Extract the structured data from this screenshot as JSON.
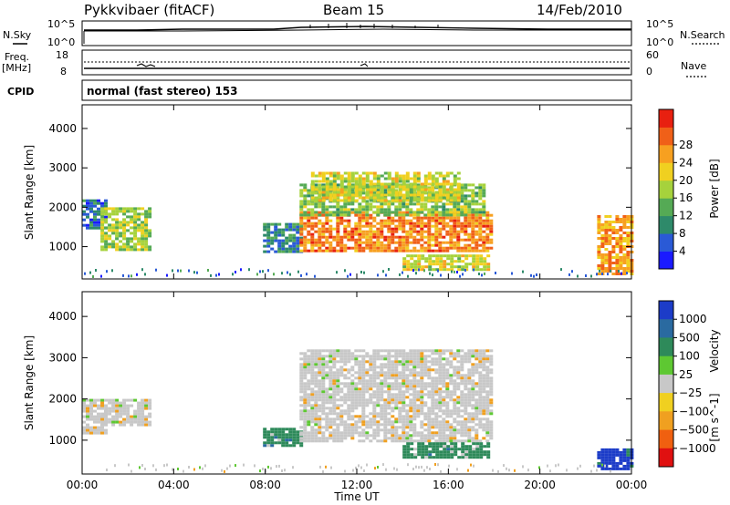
{
  "header": {
    "title": "Pykkvibaer (fitACF)",
    "beam": "Beam 15",
    "date": "14/Feb/2010"
  },
  "labels": {
    "nsky": "N.Sky",
    "nsearch": "N.Search",
    "freq_line1": "Freq.",
    "freq_line2": "[MHz]",
    "nave": "Nave",
    "cpid": "CPID",
    "cpid_text": "normal (fast stereo) 153",
    "ylabel": "Slant Range [km]",
    "xlabel": "Time UT"
  },
  "noise_panel": {
    "left_ticks": [
      "10^5",
      "10^0"
    ],
    "right_ticks": [
      "10^5",
      "10^0"
    ]
  },
  "freq_panel": {
    "left_ticks": [
      "18",
      "8"
    ],
    "right_ticks": [
      "60",
      "0"
    ]
  },
  "chart_data": [
    {
      "type": "heatmap",
      "name": "power",
      "x_range": [
        "00:00",
        "24:00"
      ],
      "ylim": [
        180,
        4600
      ],
      "yticks": [
        1000,
        2000,
        3000,
        4000
      ],
      "xticks": [
        "00:00",
        "04:00",
        "08:00",
        "12:00",
        "16:00",
        "20:00",
        "00:00"
      ],
      "colorbar": {
        "label": "Power [dB]",
        "ticks": [
          "4",
          "8",
          "12",
          "16",
          "20",
          "24",
          "28"
        ],
        "colors": [
          "#1a1aff",
          "#2a5ad6",
          "#2e8a6a",
          "#55aa55",
          "#a6d23c",
          "#f0d020",
          "#f7a020",
          "#f06018",
          "#e82010"
        ]
      },
      "regions": [
        {
          "t": [
            0.0,
            1.0
          ],
          "range": [
            1500,
            2200
          ],
          "power_db": 6
        },
        {
          "t": [
            0.8,
            3.0
          ],
          "range": [
            950,
            2000
          ],
          "power_db": 16
        },
        {
          "t": [
            7.9,
            9.5
          ],
          "range": [
            900,
            1600
          ],
          "power_db": 8
        },
        {
          "t": [
            9.5,
            17.8
          ],
          "range": [
            900,
            1900
          ],
          "power_db": 26
        },
        {
          "t": [
            9.5,
            17.5
          ],
          "range": [
            1800,
            2600
          ],
          "power_db": 14
        },
        {
          "t": [
            10.0,
            16.5
          ],
          "range": [
            2200,
            2900
          ],
          "power_db": 18
        },
        {
          "t": [
            14.0,
            17.8
          ],
          "range": [
            450,
            800
          ],
          "power_db": 18
        },
        {
          "t": [
            22.5,
            24.0
          ],
          "range": [
            300,
            1800
          ],
          "power_db": 24
        }
      ]
    },
    {
      "type": "heatmap",
      "name": "velocity",
      "x_range": [
        "00:00",
        "24:00"
      ],
      "ylim": [
        180,
        4600
      ],
      "yticks": [
        1000,
        2000,
        3000,
        4000
      ],
      "xticks": [
        "00:00",
        "04:00",
        "08:00",
        "12:00",
        "16:00",
        "20:00",
        "00:00"
      ],
      "colorbar": {
        "label": "Velocity",
        "unit": "[m s^-1]",
        "ticks": [
          "1000",
          "500",
          "100",
          "25",
          "−25",
          "−100",
          "−500",
          "−1000"
        ],
        "colors": [
          "#1c3cc8",
          "#2a6aa0",
          "#2e8a5a",
          "#5ec832",
          "#c8c8c8",
          "#f0d020",
          "#f0a020",
          "#f06010",
          "#e01010"
        ]
      },
      "regions": [
        {
          "t": [
            0.0,
            1.0
          ],
          "range": [
            1200,
            2000
          ],
          "velocity": 0
        },
        {
          "t": [
            0.8,
            3.0
          ],
          "range": [
            1400,
            2000
          ],
          "velocity": 0
        },
        {
          "t": [
            7.9,
            9.5
          ],
          "range": [
            900,
            1300
          ],
          "velocity": 150
        },
        {
          "t": [
            9.5,
            17.8
          ],
          "range": [
            1000,
            3200
          ],
          "velocity": 0
        },
        {
          "t": [
            14.0,
            17.8
          ],
          "range": [
            600,
            950
          ],
          "velocity": 120
        },
        {
          "t": [
            22.5,
            24.0
          ],
          "range": [
            300,
            800
          ],
          "velocity": 800
        }
      ]
    }
  ]
}
